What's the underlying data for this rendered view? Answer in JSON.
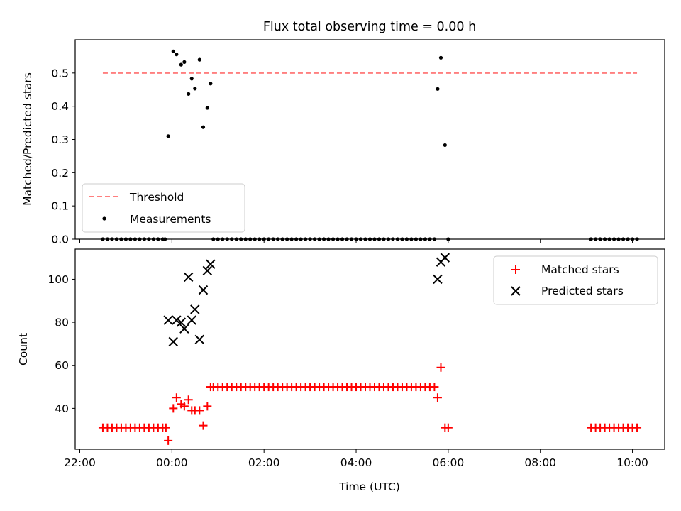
{
  "chart_data": [
    {
      "type": "scatter",
      "title": "Flux total observing time = 0.00 h",
      "xlabel": "",
      "ylabel": "Matched/Predicted stars",
      "xlim": [
        -2.1,
        10.7
      ],
      "ylim": [
        0,
        0.6
      ],
      "yticks": [
        0.0,
        0.1,
        0.2,
        0.3,
        0.4,
        0.5
      ],
      "ytick_labels": [
        "0.0",
        "0.1",
        "0.2",
        "0.3",
        "0.4",
        "0.5"
      ],
      "xticks": [
        -2,
        0,
        2,
        4,
        6,
        8,
        10
      ],
      "xtick_labels": [
        "22:00",
        "00:00",
        "02:00",
        "04:00",
        "06:00",
        "08:00",
        "10:00"
      ],
      "legend": {
        "position": "lower-left",
        "entries": [
          "Threshold",
          "Measurements"
        ]
      },
      "threshold": {
        "name": "Threshold",
        "y": 0.5,
        "x_range": [
          -1.5,
          10.1
        ],
        "color": "#ff7f7f",
        "style": "dashed"
      },
      "series": [
        {
          "name": "Measurements",
          "color": "#000000",
          "points": [
            [
              -1.5,
              0
            ],
            [
              -1.4,
              0
            ],
            [
              -1.3,
              0
            ],
            [
              -1.2,
              0
            ],
            [
              -1.1,
              0
            ],
            [
              -1.0,
              0
            ],
            [
              -0.9,
              0
            ],
            [
              -0.8,
              0
            ],
            [
              -0.7,
              0
            ],
            [
              -0.6,
              0
            ],
            [
              -0.5,
              0
            ],
            [
              -0.4,
              0
            ],
            [
              -0.3,
              0
            ],
            [
              -0.2,
              0
            ],
            [
              -0.15,
              0
            ],
            [
              -0.08,
              0.31
            ],
            [
              0.03,
              0.565
            ],
            [
              0.1,
              0.556
            ],
            [
              0.2,
              0.525
            ],
            [
              0.27,
              0.533
            ],
            [
              0.36,
              0.437
            ],
            [
              0.43,
              0.483
            ],
            [
              0.5,
              0.453
            ],
            [
              0.6,
              0.54
            ],
            [
              0.68,
              0.337
            ],
            [
              0.77,
              0.395
            ],
            [
              0.84,
              0.468
            ],
            [
              0.9,
              0
            ],
            [
              1.0,
              0
            ],
            [
              1.1,
              0
            ],
            [
              1.2,
              0
            ],
            [
              1.3,
              0
            ],
            [
              1.4,
              0
            ],
            [
              1.5,
              0
            ],
            [
              1.6,
              0
            ],
            [
              1.7,
              0
            ],
            [
              1.8,
              0
            ],
            [
              1.9,
              0
            ],
            [
              2.0,
              0
            ],
            [
              2.1,
              0
            ],
            [
              2.2,
              0
            ],
            [
              2.3,
              0
            ],
            [
              2.4,
              0
            ],
            [
              2.5,
              0
            ],
            [
              2.6,
              0
            ],
            [
              2.7,
              0
            ],
            [
              2.8,
              0
            ],
            [
              2.9,
              0
            ],
            [
              3.0,
              0
            ],
            [
              3.1,
              0
            ],
            [
              3.2,
              0
            ],
            [
              3.3,
              0
            ],
            [
              3.4,
              0
            ],
            [
              3.5,
              0
            ],
            [
              3.6,
              0
            ],
            [
              3.7,
              0
            ],
            [
              3.8,
              0
            ],
            [
              3.9,
              0
            ],
            [
              4.0,
              0
            ],
            [
              4.1,
              0
            ],
            [
              4.2,
              0
            ],
            [
              4.3,
              0
            ],
            [
              4.4,
              0
            ],
            [
              4.5,
              0
            ],
            [
              4.6,
              0
            ],
            [
              4.7,
              0
            ],
            [
              4.8,
              0
            ],
            [
              4.9,
              0
            ],
            [
              5.0,
              0
            ],
            [
              5.1,
              0
            ],
            [
              5.2,
              0
            ],
            [
              5.3,
              0
            ],
            [
              5.4,
              0
            ],
            [
              5.5,
              0
            ],
            [
              5.6,
              0
            ],
            [
              5.7,
              0
            ],
            [
              5.77,
              0.452
            ],
            [
              5.84,
              0.546
            ],
            [
              5.93,
              0.283
            ],
            [
              6.0,
              0
            ],
            [
              9.1,
              0
            ],
            [
              9.2,
              0
            ],
            [
              9.3,
              0
            ],
            [
              9.4,
              0
            ],
            [
              9.5,
              0
            ],
            [
              9.6,
              0
            ],
            [
              9.7,
              0
            ],
            [
              9.8,
              0
            ],
            [
              9.9,
              0
            ],
            [
              10.0,
              0
            ],
            [
              10.1,
              0
            ]
          ]
        }
      ]
    },
    {
      "type": "scatter",
      "title": "",
      "xlabel": "Time (UTC)",
      "ylabel": "Count",
      "xlim": [
        -2.1,
        10.7
      ],
      "ylim": [
        21,
        114
      ],
      "yticks": [
        40,
        60,
        80,
        100
      ],
      "ytick_labels": [
        "40",
        "60",
        "80",
        "100"
      ],
      "xticks": [
        -2,
        0,
        2,
        4,
        6,
        8,
        10
      ],
      "xtick_labels": [
        "22:00",
        "00:00",
        "02:00",
        "04:00",
        "06:00",
        "08:00",
        "10:00"
      ],
      "legend": {
        "position": "upper-right",
        "entries": [
          "Matched stars",
          "Predicted stars"
        ]
      },
      "series": [
        {
          "name": "Matched stars",
          "marker": "plus",
          "color": "#ff0000",
          "points": [
            [
              -1.5,
              31
            ],
            [
              -1.4,
              31
            ],
            [
              -1.3,
              31
            ],
            [
              -1.2,
              31
            ],
            [
              -1.1,
              31
            ],
            [
              -1.0,
              31
            ],
            [
              -0.9,
              31
            ],
            [
              -0.8,
              31
            ],
            [
              -0.7,
              31
            ],
            [
              -0.6,
              31
            ],
            [
              -0.5,
              31
            ],
            [
              -0.4,
              31
            ],
            [
              -0.3,
              31
            ],
            [
              -0.2,
              31
            ],
            [
              -0.13,
              31
            ],
            [
              -0.08,
              25
            ],
            [
              0.03,
              40
            ],
            [
              0.1,
              45
            ],
            [
              0.2,
              42
            ],
            [
              0.27,
              41
            ],
            [
              0.36,
              44
            ],
            [
              0.43,
              39
            ],
            [
              0.5,
              39
            ],
            [
              0.6,
              39
            ],
            [
              0.68,
              32
            ],
            [
              0.77,
              41
            ],
            [
              0.84,
              50
            ],
            [
              0.9,
              50
            ],
            [
              1.0,
              50
            ],
            [
              1.1,
              50
            ],
            [
              1.2,
              50
            ],
            [
              1.3,
              50
            ],
            [
              1.4,
              50
            ],
            [
              1.5,
              50
            ],
            [
              1.6,
              50
            ],
            [
              1.7,
              50
            ],
            [
              1.8,
              50
            ],
            [
              1.9,
              50
            ],
            [
              2.0,
              50
            ],
            [
              2.1,
              50
            ],
            [
              2.2,
              50
            ],
            [
              2.3,
              50
            ],
            [
              2.4,
              50
            ],
            [
              2.5,
              50
            ],
            [
              2.6,
              50
            ],
            [
              2.7,
              50
            ],
            [
              2.8,
              50
            ],
            [
              2.9,
              50
            ],
            [
              3.0,
              50
            ],
            [
              3.1,
              50
            ],
            [
              3.2,
              50
            ],
            [
              3.3,
              50
            ],
            [
              3.4,
              50
            ],
            [
              3.5,
              50
            ],
            [
              3.6,
              50
            ],
            [
              3.7,
              50
            ],
            [
              3.8,
              50
            ],
            [
              3.9,
              50
            ],
            [
              4.0,
              50
            ],
            [
              4.1,
              50
            ],
            [
              4.2,
              50
            ],
            [
              4.3,
              50
            ],
            [
              4.4,
              50
            ],
            [
              4.5,
              50
            ],
            [
              4.6,
              50
            ],
            [
              4.7,
              50
            ],
            [
              4.8,
              50
            ],
            [
              4.9,
              50
            ],
            [
              5.0,
              50
            ],
            [
              5.1,
              50
            ],
            [
              5.2,
              50
            ],
            [
              5.3,
              50
            ],
            [
              5.4,
              50
            ],
            [
              5.5,
              50
            ],
            [
              5.6,
              50
            ],
            [
              5.7,
              50
            ],
            [
              5.77,
              45
            ],
            [
              5.84,
              59
            ],
            [
              5.93,
              31
            ],
            [
              6.0,
              31
            ],
            [
              9.1,
              31
            ],
            [
              9.2,
              31
            ],
            [
              9.3,
              31
            ],
            [
              9.4,
              31
            ],
            [
              9.5,
              31
            ],
            [
              9.6,
              31
            ],
            [
              9.7,
              31
            ],
            [
              9.8,
              31
            ],
            [
              9.9,
              31
            ],
            [
              10.0,
              31
            ],
            [
              10.1,
              31
            ]
          ]
        },
        {
          "name": "Predicted stars",
          "marker": "x",
          "color": "#000000",
          "points": [
            [
              -0.08,
              81
            ],
            [
              0.03,
              71
            ],
            [
              0.1,
              81
            ],
            [
              0.2,
              80
            ],
            [
              0.27,
              77
            ],
            [
              0.36,
              101
            ],
            [
              0.43,
              81
            ],
            [
              0.5,
              86
            ],
            [
              0.6,
              72
            ],
            [
              0.68,
              95
            ],
            [
              0.77,
              104
            ],
            [
              0.84,
              107
            ],
            [
              5.77,
              100
            ],
            [
              5.84,
              108
            ],
            [
              5.93,
              110
            ]
          ]
        }
      ]
    }
  ]
}
